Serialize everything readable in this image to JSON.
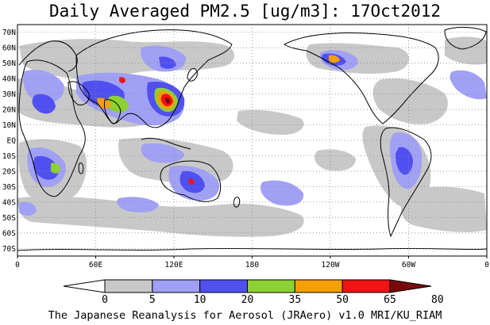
{
  "title": "Daily Averaged PM2.5 [ug/m3]: 17Oct2012",
  "footer": "The Japanese Reanalysis for Aerosol (JRAero) v1.0 MRI/KU_RIAM",
  "map": {
    "projection": "equirectangular",
    "lon_range": [
      0,
      360
    ],
    "lat_range": [
      -75,
      75
    ],
    "graticule": "dotted",
    "lat_labels": [
      "70N",
      "60N",
      "50N",
      "40N",
      "30N",
      "20N",
      "10N",
      "EQ",
      "10S",
      "20S",
      "30S",
      "40S",
      "50S",
      "60S",
      "70S"
    ],
    "lat_values": [
      70,
      60,
      50,
      40,
      30,
      20,
      10,
      0,
      -10,
      -20,
      -30,
      -40,
      -50,
      -60,
      -70
    ],
    "lon_labels": [
      "0",
      "60E",
      "120E",
      "180",
      "120W",
      "60W",
      "0"
    ],
    "lon_values": [
      0,
      60,
      120,
      180,
      240,
      300,
      360
    ]
  },
  "colorbar": {
    "levels": [
      "0",
      "5",
      "10",
      "20",
      "35",
      "50",
      "65",
      "80"
    ],
    "colors": [
      "#ffffff",
      "#c8c8c8",
      "#a0a0f5",
      "#5050f0",
      "#8cd232",
      "#f5a000",
      "#f01414",
      "#7a0a0a"
    ]
  }
}
